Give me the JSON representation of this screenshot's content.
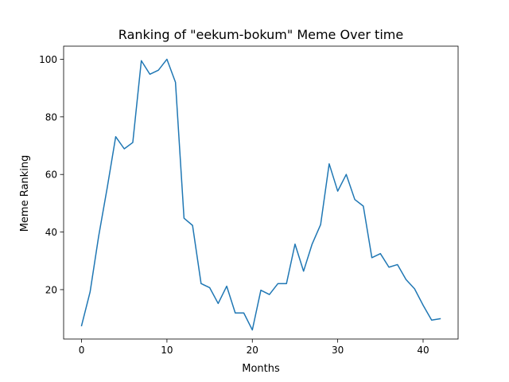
{
  "chart_data": {
    "type": "line",
    "title": "Ranking of \"eekum-bokum\" Meme Over time",
    "xlabel": "Months",
    "ylabel": "Meme Ranking",
    "xlim": [
      -2.1,
      44.1
    ],
    "ylim": [
      2.85,
      104.55
    ],
    "xticks": [
      0,
      10,
      20,
      30,
      40
    ],
    "yticks": [
      20,
      40,
      60,
      80,
      100
    ],
    "grid": false,
    "series": [
      {
        "color": "#1f77b4",
        "x": [
          0,
          1,
          2,
          3,
          4,
          5,
          6,
          7,
          8,
          9,
          10,
          11,
          12,
          13,
          14,
          15,
          16,
          17,
          18,
          19,
          20,
          21,
          22,
          23,
          24,
          25,
          26,
          27,
          28,
          29,
          30,
          31,
          32,
          33,
          34,
          35,
          36,
          37,
          38,
          39,
          40,
          41,
          42
        ],
        "y": [
          7.5,
          19.2,
          38.5,
          55.3,
          73.1,
          68.9,
          71.1,
          99.5,
          94.8,
          96.2,
          100,
          92,
          44.8,
          42.3,
          22.1,
          20.7,
          15.2,
          21.2,
          11.9,
          11.9,
          6,
          19.8,
          18.3,
          22.1,
          22.1,
          35.8,
          26.4,
          35.8,
          42.6,
          63.7,
          54.2,
          60,
          51.3,
          49,
          31.1,
          32.5,
          27.8,
          28.7,
          23.5,
          20.3,
          14.6,
          9.4,
          9.9
        ]
      }
    ]
  }
}
